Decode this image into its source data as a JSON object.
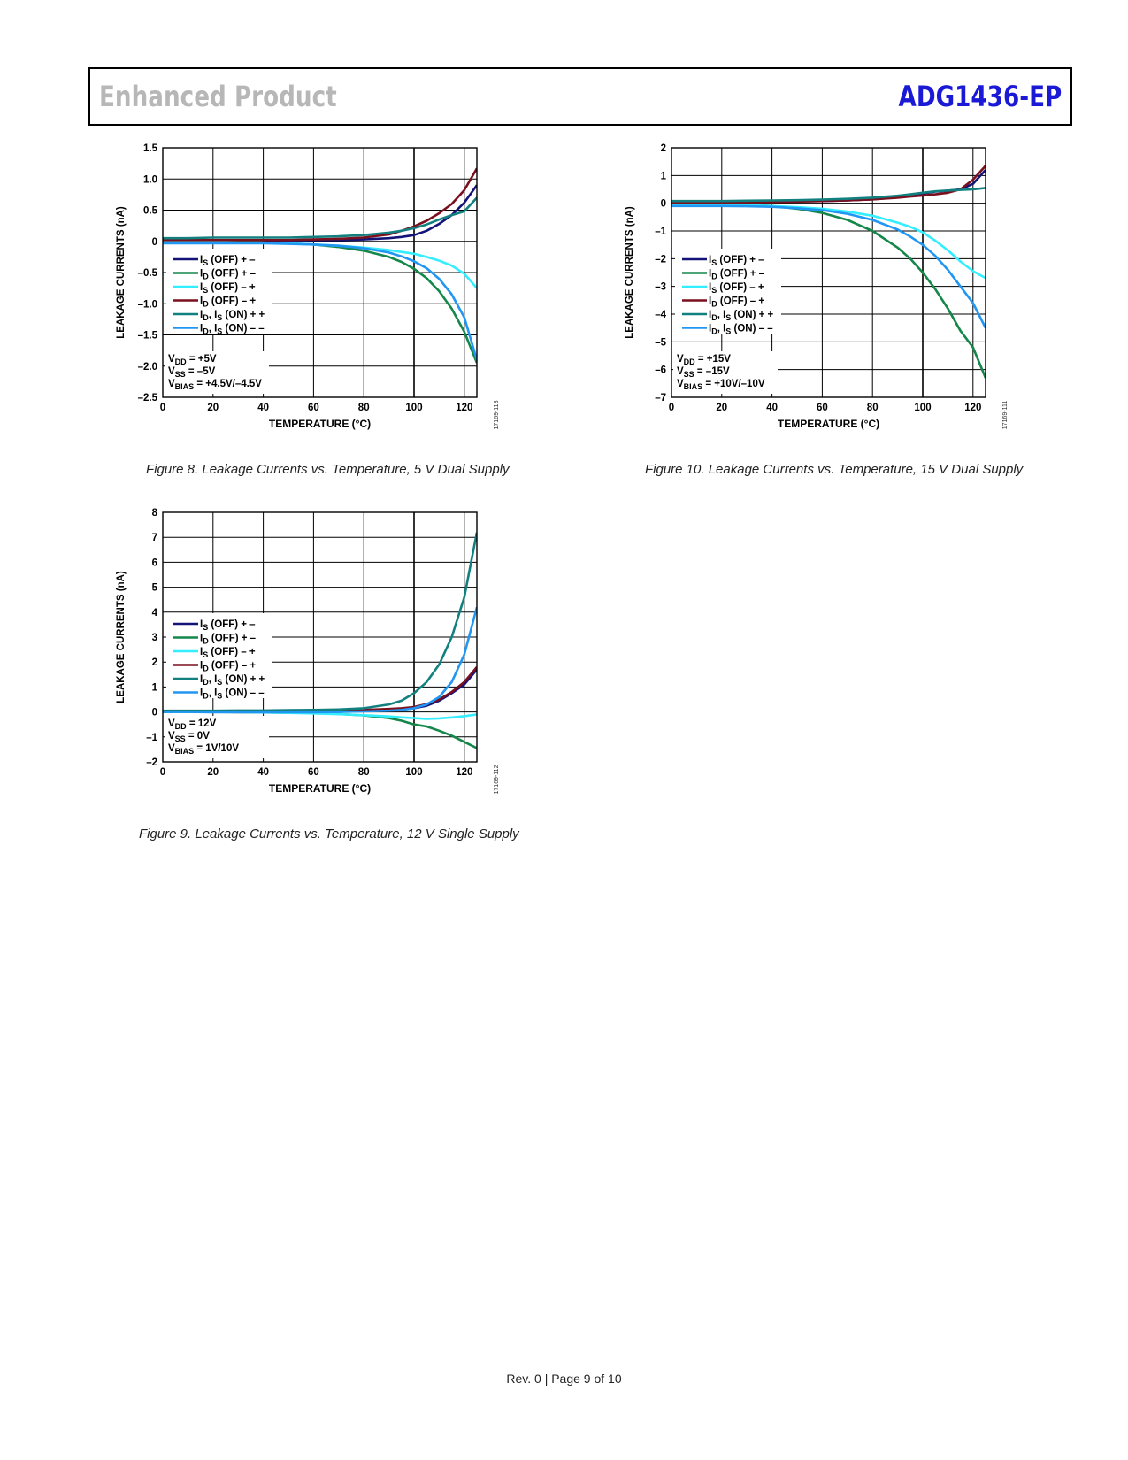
{
  "header": {
    "left": "Enhanced Product",
    "right": "ADG1436-EP"
  },
  "footer": {
    "text": "Rev. 0 | Page 9 of 10"
  },
  "colors": {
    "is_off_pm": "#141478",
    "id_off_pm": "#15874a",
    "is_off_mp": "#33eeff",
    "id_off_mp": "#7a0f1e",
    "on_pp": "#138080",
    "on_mm": "#2196f3"
  },
  "chart_data": [
    {
      "type": "line",
      "caption": "Figure 8. Leakage Currents vs. Temperature, 5 V Dual Supply",
      "code": "17169-113",
      "xlabel": "TEMPERATURE (°C)",
      "ylabel": "LEAKAGE CURRENTS (nA)",
      "xlim": [
        0,
        125
      ],
      "ylim": [
        -2.5,
        1.5
      ],
      "xticks": [
        0,
        20,
        40,
        60,
        80,
        100,
        120
      ],
      "yticks": [
        -2.5,
        -2.0,
        -1.5,
        -1.0,
        -0.5,
        0,
        0.5,
        1.0,
        1.5
      ],
      "ytick_labels": [
        "–2.5",
        "–2.0",
        "–1.5",
        "–1.0",
        "–0.5",
        "0",
        "0.5",
        "1.0",
        "1.5"
      ],
      "grid": true,
      "legend": [
        {
          "main": "I",
          "sub": "S",
          "rest": " (OFF) + –",
          "color": "#141478"
        },
        {
          "main": "I",
          "sub": "D",
          "rest": " (OFF) + –",
          "color": "#15874a"
        },
        {
          "main": "I",
          "sub": "S",
          "rest": " (OFF) – +",
          "color": "#33eeff"
        },
        {
          "main": "I",
          "sub": "D",
          "rest": " (OFF) – +",
          "color": "#7a0f1e"
        },
        {
          "main": "I",
          "sub": "D",
          "mid": ", I",
          "sub2": "S",
          "rest": " (ON) + +",
          "color": "#138080"
        },
        {
          "main": "I",
          "sub": "D",
          "mid": ", I",
          "sub2": "S",
          "rest": " (ON) – –",
          "color": "#2196f3"
        }
      ],
      "conditions": [
        {
          "main": "V",
          "sub": "DD",
          "rest": " = +5V"
        },
        {
          "main": "V",
          "sub": "SS",
          "rest": " = –5V"
        },
        {
          "main": "V",
          "sub": "BIAS",
          "rest": " = +4.5V/–4.5V"
        }
      ],
      "x": [
        0,
        10,
        20,
        30,
        40,
        50,
        60,
        70,
        80,
        90,
        95,
        100,
        105,
        110,
        115,
        120,
        125
      ],
      "series": [
        {
          "color": "#141478",
          "values": [
            0.02,
            0.01,
            0.0,
            0.01,
            0.01,
            0.01,
            0.02,
            0.02,
            0.03,
            0.05,
            0.07,
            0.1,
            0.17,
            0.28,
            0.42,
            0.62,
            0.9
          ]
        },
        {
          "color": "#15874a",
          "values": [
            0.03,
            0.02,
            0.01,
            0.0,
            -0.02,
            -0.03,
            -0.05,
            -0.09,
            -0.15,
            -0.25,
            -0.33,
            -0.44,
            -0.59,
            -0.8,
            -1.08,
            -1.45,
            -1.95
          ]
        },
        {
          "color": "#33eeff",
          "values": [
            0.0,
            -0.01,
            -0.01,
            -0.02,
            -0.02,
            -0.03,
            -0.05,
            -0.07,
            -0.1,
            -0.14,
            -0.17,
            -0.2,
            -0.25,
            -0.31,
            -0.39,
            -0.52,
            -0.75
          ]
        },
        {
          "color": "#7a0f1e",
          "values": [
            0.02,
            0.02,
            0.02,
            0.02,
            0.02,
            0.02,
            0.03,
            0.04,
            0.06,
            0.11,
            0.17,
            0.24,
            0.33,
            0.45,
            0.6,
            0.82,
            1.17
          ]
        },
        {
          "color": "#138080",
          "values": [
            0.05,
            0.05,
            0.06,
            0.06,
            0.06,
            0.06,
            0.07,
            0.08,
            0.1,
            0.14,
            0.17,
            0.21,
            0.27,
            0.35,
            0.42,
            0.48,
            0.7
          ]
        },
        {
          "color": "#2196f3",
          "values": [
            -0.03,
            -0.03,
            -0.03,
            -0.03,
            -0.03,
            -0.04,
            -0.05,
            -0.07,
            -0.11,
            -0.18,
            -0.24,
            -0.32,
            -0.43,
            -0.6,
            -0.85,
            -1.22,
            -1.9
          ]
        }
      ]
    },
    {
      "type": "line",
      "caption": "Figure 9. Leakage Currents vs. Temperature, 12 V Single Supply",
      "code": "17169-112",
      "xlabel": "TEMPERATURE (°C)",
      "ylabel": "LEAKAGE CURRENTS (nA)",
      "xlim": [
        0,
        125
      ],
      "ylim": [
        -2,
        8
      ],
      "xticks": [
        0,
        20,
        40,
        60,
        80,
        100,
        120
      ],
      "yticks": [
        -2,
        -1,
        0,
        1,
        2,
        3,
        4,
        5,
        6,
        7,
        8
      ],
      "ytick_labels": [
        "–2",
        "–1",
        "0",
        "1",
        "2",
        "3",
        "4",
        "5",
        "6",
        "7",
        "8"
      ],
      "grid": true,
      "legend": [
        {
          "main": "I",
          "sub": "S",
          "rest": " (OFF) + –",
          "color": "#141478"
        },
        {
          "main": "I",
          "sub": "D",
          "rest": " (OFF) + –",
          "color": "#15874a"
        },
        {
          "main": "I",
          "sub": "S",
          "rest": " (OFF) – +",
          "color": "#33eeff"
        },
        {
          "main": "I",
          "sub": "D",
          "rest": " (OFF) – +",
          "color": "#7a0f1e"
        },
        {
          "main": "I",
          "sub": "D",
          "mid": ", I",
          "sub2": "S",
          "rest": " (ON) + +",
          "color": "#138080"
        },
        {
          "main": "I",
          "sub": "D",
          "mid": ", I",
          "sub2": "S",
          "rest": " (ON) – –",
          "color": "#2196f3"
        }
      ],
      "conditions": [
        {
          "main": "V",
          "sub": "DD",
          "rest": " = 12V"
        },
        {
          "main": "V",
          "sub": "SS",
          "rest": " = 0V"
        },
        {
          "main": "V",
          "sub": "BIAS",
          "rest": " = 1V/10V"
        }
      ],
      "x": [
        0,
        10,
        20,
        30,
        40,
        50,
        60,
        70,
        80,
        90,
        95,
        100,
        105,
        110,
        115,
        120,
        125
      ],
      "series": [
        {
          "color": "#141478",
          "values": [
            0.0,
            0.0,
            0.01,
            0.01,
            0.02,
            0.02,
            0.03,
            0.04,
            0.05,
            0.08,
            0.1,
            0.15,
            0.25,
            0.45,
            0.75,
            1.1,
            1.7
          ]
        },
        {
          "color": "#15874a",
          "values": [
            0.0,
            0.0,
            0.0,
            -0.01,
            -0.02,
            -0.03,
            -0.05,
            -0.08,
            -0.14,
            -0.25,
            -0.35,
            -0.5,
            -0.58,
            -0.75,
            -0.95,
            -1.2,
            -1.45
          ]
        },
        {
          "color": "#33eeff",
          "values": [
            0.0,
            0.0,
            0.0,
            0.0,
            -0.02,
            -0.04,
            -0.06,
            -0.09,
            -0.13,
            -0.18,
            -0.22,
            -0.25,
            -0.28,
            -0.26,
            -0.22,
            -0.17,
            -0.1
          ]
        },
        {
          "color": "#7a0f1e",
          "values": [
            0.02,
            0.02,
            0.02,
            0.03,
            0.03,
            0.04,
            0.05,
            0.06,
            0.08,
            0.12,
            0.15,
            0.2,
            0.32,
            0.5,
            0.8,
            1.2,
            1.8
          ]
        },
        {
          "color": "#138080",
          "values": [
            0.05,
            0.05,
            0.05,
            0.06,
            0.06,
            0.07,
            0.08,
            0.1,
            0.15,
            0.3,
            0.45,
            0.75,
            1.2,
            1.9,
            3.0,
            4.6,
            7.2
          ]
        },
        {
          "color": "#2196f3",
          "values": [
            0.0,
            0.0,
            -0.01,
            -0.01,
            -0.01,
            -0.01,
            -0.01,
            0.0,
            0.02,
            0.05,
            0.08,
            0.15,
            0.3,
            0.6,
            1.2,
            2.3,
            4.2
          ]
        }
      ]
    },
    {
      "type": "line",
      "caption": "Figure 10. Leakage Currents vs. Temperature, 15 V Dual Supply",
      "code": "17169-111",
      "xlabel": "TEMPERATURE (°C)",
      "ylabel": "LEAKAGE CURRENTS (nA)",
      "xlim": [
        0,
        125
      ],
      "ylim": [
        -7,
        2
      ],
      "xticks": [
        0,
        20,
        40,
        60,
        80,
        100,
        120
      ],
      "yticks": [
        -7,
        -6,
        -5,
        -4,
        -3,
        -2,
        -1,
        0,
        1,
        2
      ],
      "ytick_labels": [
        "–7",
        "–6",
        "–5",
        "–4",
        "–3",
        "–2",
        "–1",
        "0",
        "1",
        "2"
      ],
      "grid": true,
      "legend": [
        {
          "main": "I",
          "sub": "S",
          "rest": " (OFF) + –",
          "color": "#141478"
        },
        {
          "main": "I",
          "sub": "D",
          "rest": " (OFF) + –",
          "color": "#15874a"
        },
        {
          "main": "I",
          "sub": "S",
          "rest": " (OFF) – +",
          "color": "#33eeff"
        },
        {
          "main": "I",
          "sub": "D",
          "rest": " (OFF) – +",
          "color": "#7a0f1e"
        },
        {
          "main": "I",
          "sub": "D",
          "mid": ", I",
          "sub2": "S",
          "rest": " (ON) + +",
          "color": "#138080"
        },
        {
          "main": "I",
          "sub": "D",
          "mid": ", I",
          "sub2": "S",
          "rest": " (ON) – –",
          "color": "#2196f3"
        }
      ],
      "conditions": [
        {
          "main": "V",
          "sub": "DD",
          "rest": " = +15V"
        },
        {
          "main": "V",
          "sub": "SS",
          "rest": " = –15V"
        },
        {
          "main": "V",
          "sub": "BIAS",
          "rest": " = +10V/–10V"
        }
      ],
      "x": [
        0,
        10,
        20,
        30,
        40,
        50,
        60,
        70,
        80,
        90,
        95,
        100,
        105,
        110,
        115,
        120,
        125
      ],
      "series": [
        {
          "color": "#141478",
          "values": [
            0.05,
            0.05,
            0.05,
            0.05,
            0.06,
            0.07,
            0.08,
            0.1,
            0.14,
            0.22,
            0.28,
            0.35,
            0.42,
            0.45,
            0.5,
            0.7,
            1.2
          ]
        },
        {
          "color": "#15874a",
          "values": [
            0.05,
            0.03,
            0.0,
            -0.04,
            -0.1,
            -0.2,
            -0.35,
            -0.6,
            -1.0,
            -1.6,
            -2.0,
            -2.5,
            -3.1,
            -3.8,
            -4.6,
            -5.2,
            -6.3
          ]
        },
        {
          "color": "#33eeff",
          "values": [
            -0.02,
            -0.03,
            -0.05,
            -0.07,
            -0.1,
            -0.14,
            -0.2,
            -0.3,
            -0.45,
            -0.7,
            -0.85,
            -1.05,
            -1.35,
            -1.7,
            -2.1,
            -2.45,
            -2.7
          ]
        },
        {
          "color": "#7a0f1e",
          "values": [
            0.0,
            0.0,
            0.02,
            0.03,
            0.04,
            0.06,
            0.08,
            0.1,
            0.14,
            0.2,
            0.24,
            0.28,
            0.32,
            0.38,
            0.5,
            0.85,
            1.35
          ]
        },
        {
          "color": "#138080",
          "values": [
            0.08,
            0.08,
            0.08,
            0.09,
            0.1,
            0.11,
            0.13,
            0.16,
            0.2,
            0.27,
            0.32,
            0.38,
            0.43,
            0.46,
            0.48,
            0.5,
            0.55
          ]
        },
        {
          "color": "#2196f3",
          "values": [
            -0.1,
            -0.1,
            -0.1,
            -0.11,
            -0.13,
            -0.18,
            -0.25,
            -0.38,
            -0.6,
            -0.95,
            -1.2,
            -1.5,
            -1.9,
            -2.4,
            -3.0,
            -3.6,
            -4.5
          ]
        }
      ]
    }
  ]
}
